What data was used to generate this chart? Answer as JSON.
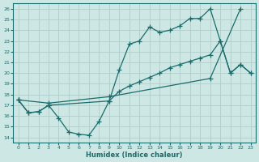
{
  "xlabel": "Humidex (Indice chaleur)",
  "background_color": "#cde8e4",
  "grid_color": "#b8d8d4",
  "line_color": "#1a6b6b",
  "xlim": [
    -0.5,
    23.5
  ],
  "ylim": [
    13.5,
    26.5
  ],
  "yticks": [
    14,
    15,
    16,
    17,
    18,
    19,
    20,
    21,
    22,
    23,
    24,
    25,
    26
  ],
  "xticks": [
    0,
    1,
    2,
    3,
    4,
    5,
    6,
    7,
    8,
    9,
    10,
    11,
    12,
    13,
    14,
    15,
    16,
    17,
    18,
    19,
    20,
    21,
    22,
    23
  ],
  "series": [
    {
      "x": [
        0,
        3,
        9,
        19,
        22
      ],
      "y": [
        17.5,
        17.2,
        17.8,
        19.5,
        26.0
      ]
    },
    {
      "x": [
        0,
        1,
        2,
        3,
        4,
        5,
        6,
        7,
        8,
        9,
        10,
        11,
        12,
        13,
        14,
        15,
        16,
        17,
        18,
        19,
        20,
        21,
        22,
        23
      ],
      "y": [
        17.5,
        16.3,
        16.4,
        17.0,
        15.8,
        14.5,
        14.3,
        14.2,
        15.5,
        17.4,
        20.3,
        22.7,
        23.0,
        24.3,
        23.8,
        24.0,
        24.4,
        25.1,
        25.1,
        26.0,
        23.0,
        20.0,
        20.8,
        20.0
      ]
    },
    {
      "x": [
        0,
        1,
        2,
        3,
        9,
        10,
        11,
        12,
        13,
        14,
        15,
        16,
        17,
        18,
        19,
        20,
        21,
        22,
        23
      ],
      "y": [
        17.5,
        16.3,
        16.4,
        17.0,
        17.4,
        18.3,
        18.8,
        19.2,
        19.6,
        20.0,
        20.5,
        20.8,
        21.1,
        21.4,
        21.7,
        23.0,
        20.0,
        20.8,
        20.0
      ]
    }
  ]
}
